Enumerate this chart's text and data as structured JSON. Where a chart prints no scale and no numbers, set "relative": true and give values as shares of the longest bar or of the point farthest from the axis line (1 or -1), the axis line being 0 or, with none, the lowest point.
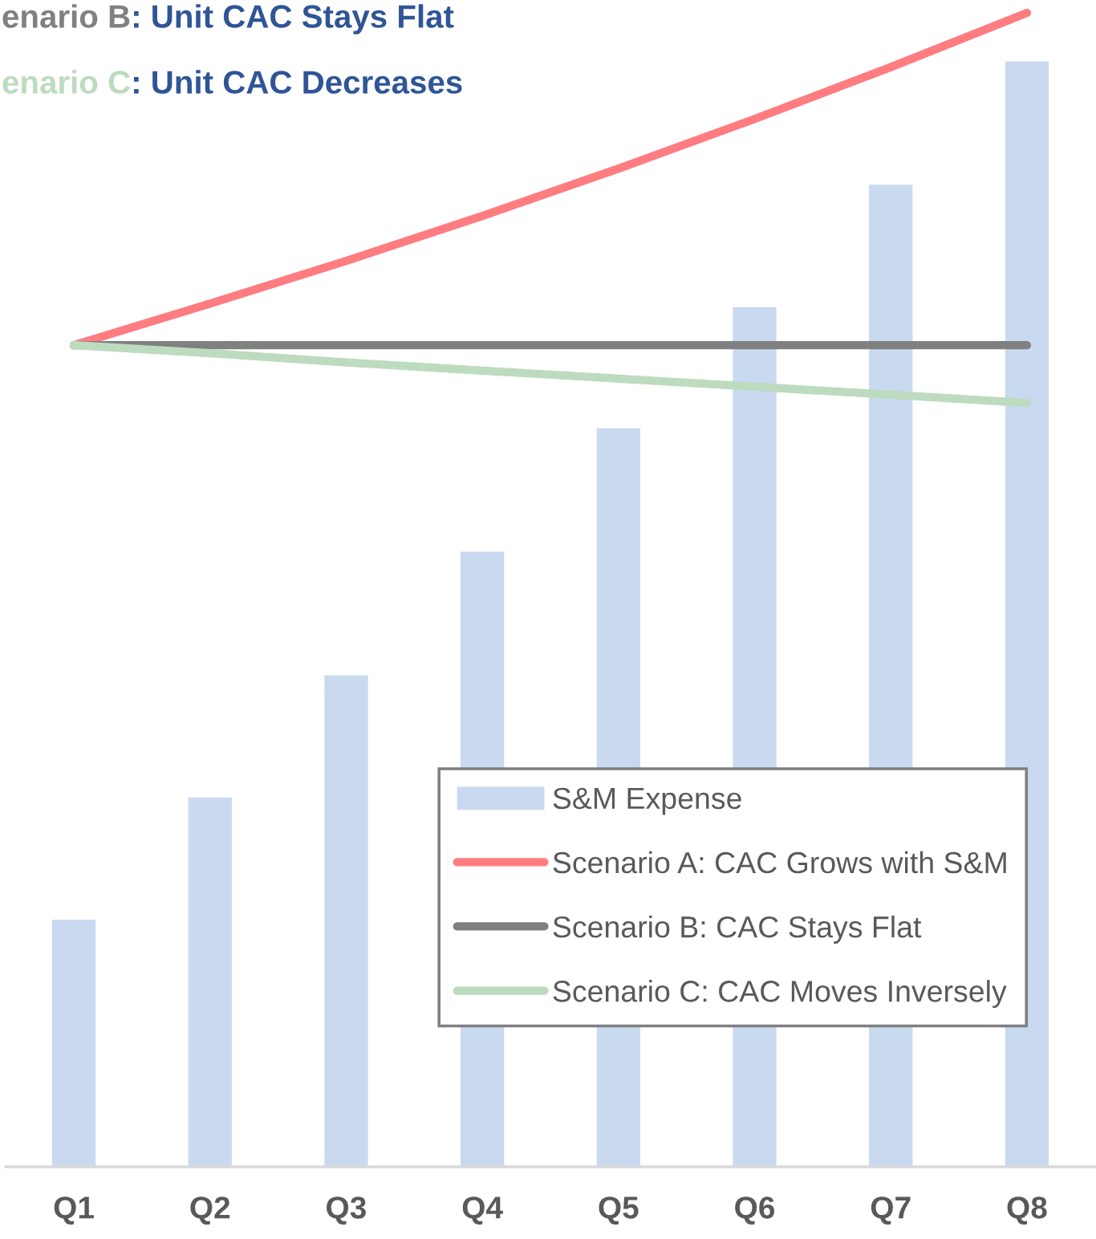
{
  "chart_data": {
    "type": "bar",
    "relative": true,
    "categories": [
      "Q1",
      "Q2",
      "Q3",
      "Q4",
      "Q5",
      "Q6",
      "Q7",
      "Q8"
    ],
    "series": [
      {
        "name": "S&M Expense",
        "color": "#c9d9f0",
        "values": [
          0.214,
          0.32,
          0.426,
          0.533,
          0.64,
          0.745,
          0.851,
          0.958
        ]
      },
      {
        "name": "Scenario A: CAC Grows with S&M",
        "type": "line",
        "color": "#ff7c80",
        "values": [
          0.712,
          0.748,
          0.785,
          0.824,
          0.865,
          0.908,
          0.953,
          1.0
        ]
      },
      {
        "name": "Scenario B: CAC Stays Flat",
        "type": "line",
        "color": "#808080",
        "values": [
          0.712,
          0.712,
          0.712,
          0.712,
          0.712,
          0.712,
          0.712,
          0.712
        ]
      },
      {
        "name": "Scenario C: CAC Moves Inversely",
        "type": "line",
        "color": "#bddbbf",
        "values": [
          0.712,
          0.705,
          0.697,
          0.69,
          0.683,
          0.676,
          0.669,
          0.662
        ]
      }
    ],
    "annotations": [
      "enario B",
      ": Unit CAC Stays Flat",
      "enario C",
      ": Unit CAC Decreases"
    ],
    "legend": "bottom right",
    "grid": false,
    "marker": "none",
    "line_style": "solid",
    "tick_labels": "x"
  }
}
